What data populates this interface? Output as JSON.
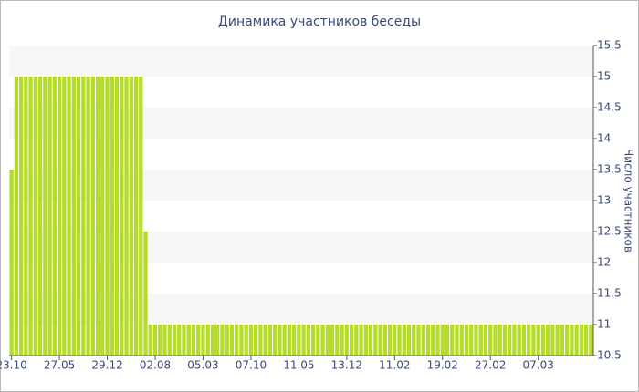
{
  "chart_data": {
    "type": "bar",
    "title": "Динамика участников беседы",
    "y_label": "Число участников",
    "categories": [
      "23.10",
      null,
      null,
      null,
      null,
      null,
      null,
      null,
      null,
      null,
      "27.05",
      null,
      null,
      null,
      null,
      null,
      null,
      null,
      null,
      null,
      "29.12",
      null,
      null,
      null,
      null,
      null,
      null,
      null,
      null,
      null,
      "02.08",
      null,
      null,
      null,
      null,
      null,
      null,
      null,
      null,
      null,
      "05.03",
      null,
      null,
      null,
      null,
      null,
      null,
      null,
      null,
      null,
      "07.10",
      null,
      null,
      null,
      null,
      null,
      null,
      null,
      null,
      null,
      "11.05",
      null,
      null,
      null,
      null,
      null,
      null,
      null,
      null,
      null,
      "13.12",
      null,
      null,
      null,
      null,
      null,
      null,
      null,
      null,
      null,
      "11.02",
      null,
      null,
      null,
      null,
      null,
      null,
      null,
      null,
      null,
      "19.02",
      null,
      null,
      null,
      null,
      null,
      null,
      null,
      null,
      null,
      "27.02",
      null,
      null,
      null,
      null,
      null,
      null,
      null,
      null,
      null,
      "07.03",
      null,
      null,
      null,
      null,
      null,
      null,
      null,
      null,
      null,
      null,
      null
    ],
    "values": [
      13.5,
      15,
      15,
      15,
      15,
      15,
      15,
      15,
      15,
      15,
      15,
      15,
      15,
      15,
      15,
      15,
      15,
      15,
      15,
      15,
      15,
      15,
      15,
      15,
      15,
      15,
      15,
      15,
      12.5,
      11,
      11,
      11,
      11,
      11,
      11,
      11,
      11,
      11,
      11,
      11,
      11,
      11,
      11,
      11,
      11,
      11,
      11,
      11,
      11,
      11,
      11,
      11,
      11,
      11,
      11,
      11,
      11,
      11,
      11,
      11,
      11,
      11,
      11,
      11,
      11,
      11,
      11,
      11,
      11,
      11,
      11,
      11,
      11,
      11,
      11,
      11,
      11,
      11,
      11,
      11,
      11,
      11,
      11,
      11,
      11,
      11,
      11,
      11,
      11,
      11,
      11,
      11,
      11,
      11,
      11,
      11,
      11,
      11,
      11,
      11,
      11,
      11,
      11,
      11,
      11,
      11,
      11,
      11,
      11,
      11,
      11,
      11,
      11,
      11,
      11,
      11,
      11,
      11,
      11,
      11,
      11,
      11
    ],
    "color": "#b5dc2a",
    "ylim": [
      10.5,
      15.5
    ],
    "yticks": [
      10.5,
      11,
      11.5,
      12,
      12.5,
      13,
      13.5,
      14,
      14.5,
      15,
      15.5
    ],
    "grid": "bands",
    "y_axis_side": "right"
  }
}
